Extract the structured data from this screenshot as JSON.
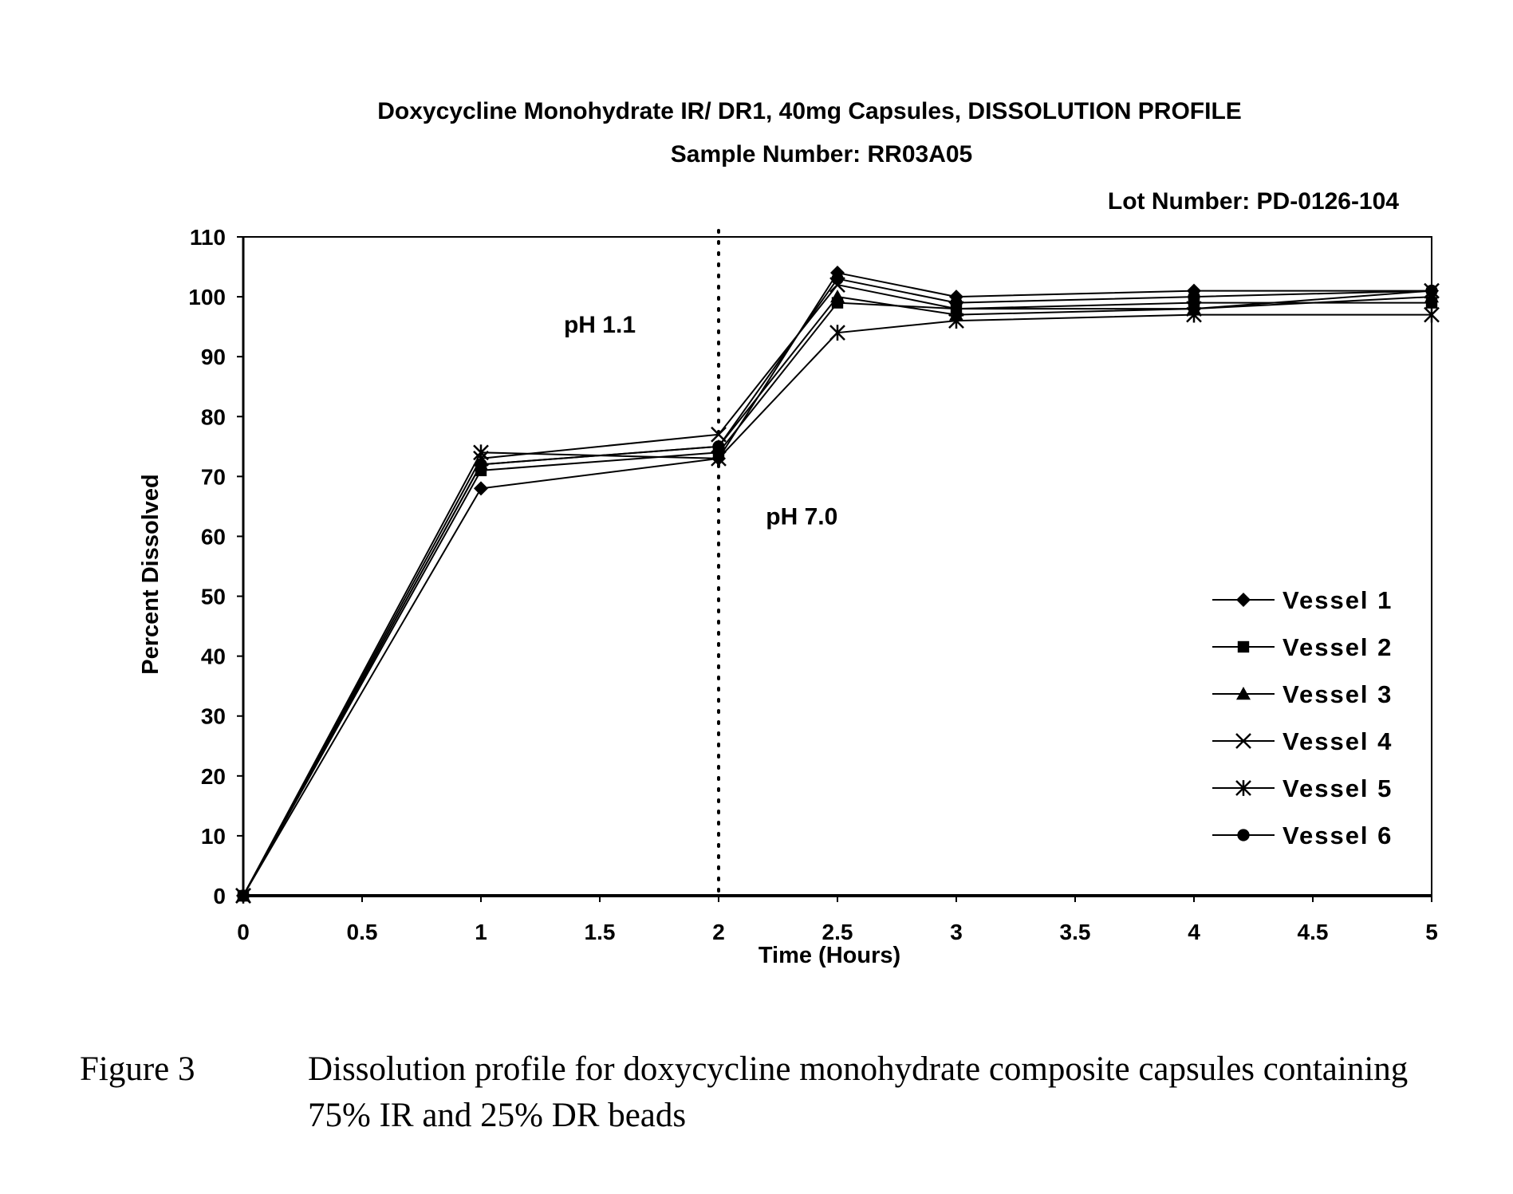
{
  "chart_data": {
    "type": "line",
    "title": "Doxycycline Monohydrate IR/ DR1, 40mg Capsules, DISSOLUTION PROFILE",
    "subtitle": "Sample Number:  RR03A05",
    "lot_number": "Lot Number:  PD-0126-104",
    "xlabel": "Time (Hours)",
    "ylabel": "Percent Dissolved",
    "xlim": [
      0,
      5
    ],
    "ylim": [
      0,
      110
    ],
    "x_ticks": [
      "0",
      "0.5",
      "1",
      "1.5",
      "2",
      "2.5",
      "3",
      "3.5",
      "4",
      "4.5",
      "5"
    ],
    "y_ticks": [
      "0",
      "10",
      "20",
      "30",
      "40",
      "50",
      "60",
      "70",
      "80",
      "90",
      "100",
      "110"
    ],
    "grid": false,
    "legend_position": "lower-right",
    "annotations": [
      {
        "text": "pH 1.1",
        "x": 1.5,
        "y": 94
      },
      {
        "text": "pH 7.0",
        "x": 2.35,
        "y": 62
      }
    ],
    "vertical_reference_line": {
      "x": 2,
      "style": "dotted"
    },
    "x": [
      0,
      1,
      2,
      2.5,
      3,
      4,
      5
    ],
    "series": [
      {
        "name": "Vessel 1",
        "marker": "diamond",
        "values": [
          0,
          68,
          73,
          104,
          100,
          101,
          101
        ]
      },
      {
        "name": "Vessel 2",
        "marker": "square",
        "values": [
          0,
          71,
          74,
          99,
          98,
          99,
          99
        ]
      },
      {
        "name": "Vessel 3",
        "marker": "triangle",
        "values": [
          0,
          72,
          75,
          100,
          97,
          98,
          100
        ]
      },
      {
        "name": "Vessel 4",
        "marker": "x",
        "values": [
          0,
          73,
          77,
          102,
          98,
          98,
          101
        ]
      },
      {
        "name": "Vessel 5",
        "marker": "star",
        "values": [
          0,
          74,
          73,
          94,
          96,
          97,
          97
        ]
      },
      {
        "name": "Vessel 6",
        "marker": "circle",
        "values": [
          0,
          72,
          75,
          103,
          99,
          100,
          101
        ]
      }
    ]
  },
  "caption": {
    "label": "Figure 3",
    "text": "Dissolution profile for doxycycline monohydrate composite capsules containing 75% IR and 25% DR beads"
  }
}
